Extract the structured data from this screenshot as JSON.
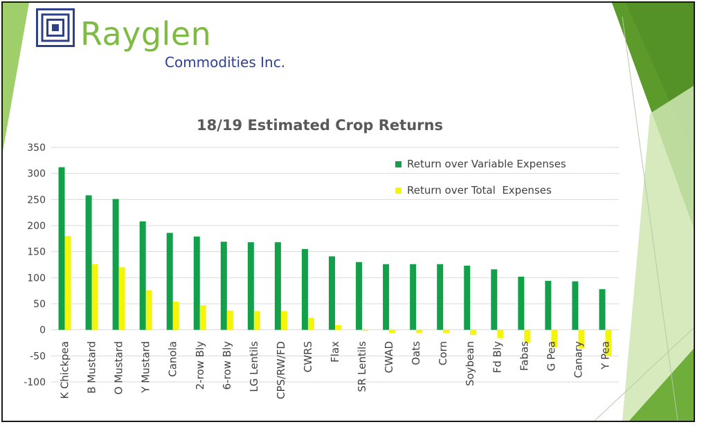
{
  "logo": {
    "name": "Rayglen",
    "subtitle": "Commodities Inc."
  },
  "colors": {
    "series_variable": "#14a04b",
    "series_total": "#f5f50a",
    "logo_green": "#7dbb42",
    "logo_blue": "#2e3f8c",
    "deco_green_dark": "#5c9a2c",
    "deco_green_light": "#9fcf6a"
  },
  "chart_data": {
    "type": "bar",
    "title": "18/19 Estimated Crop Returns",
    "xlabel": "",
    "ylabel": "",
    "ylim": [
      -100,
      350
    ],
    "yticks": [
      "350",
      "300",
      "250",
      "200",
      "150",
      "100",
      "50",
      "0",
      "-50",
      "-100"
    ],
    "grid": true,
    "legend_position": "top-right",
    "categories": [
      "K Chickpea",
      "B Mustard",
      "O Mustard",
      "Y Mustard",
      "Canola",
      "2-row Bly",
      "6-row Bly",
      "LG Lentils",
      "CPS/RW/FD",
      "CWRS",
      "Flax",
      "SR Lentils",
      "CWAD",
      "Oats",
      "Corn",
      "Soybean",
      "Fd Bly",
      "Fabas",
      "G Pea",
      "Canary",
      "Y Pea"
    ],
    "series": [
      {
        "name": "Return over Variable Expenses",
        "values": [
          312,
          258,
          251,
          208,
          186,
          179,
          169,
          168,
          168,
          155,
          141,
          130,
          126,
          126,
          126,
          123,
          116,
          102,
          94,
          93,
          78
        ]
      },
      {
        "name": "Return over Total  Expenses",
        "values": [
          180,
          126,
          120,
          76,
          54,
          47,
          37,
          36,
          36,
          23,
          9,
          -2,
          -6,
          -6,
          -6,
          -10,
          -16,
          -25,
          -34,
          -36,
          -50
        ]
      }
    ]
  }
}
